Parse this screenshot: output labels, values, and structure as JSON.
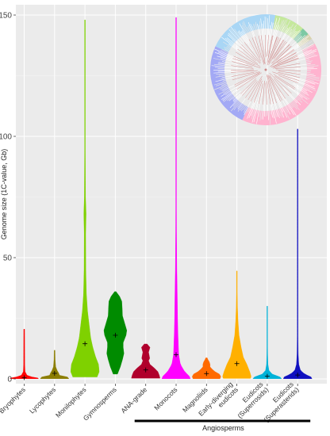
{
  "chart_data": {
    "type": "violin",
    "ylabel": "Genome size (1C-value, Gb)",
    "ylim": [
      0,
      150
    ],
    "yticks": [
      0,
      50,
      100,
      150
    ],
    "grid": true,
    "categories": [
      "Bryophytes",
      "Lycophytes",
      "Monilophytes",
      "Gymnosperms",
      "ANA-grade",
      "Monocots",
      "Magnoliids",
      "Early-diverging eudicots",
      "Eudicots (Superrosids)",
      "Eudicots (Superasterids)"
    ],
    "category_label_lines": [
      [
        "Bryophytes"
      ],
      [
        "Lycophytes"
      ],
      [
        "Monilophytes"
      ],
      [
        "Gymnosperms"
      ],
      [
        "ANA-grade"
      ],
      [
        "Monocots"
      ],
      [
        "Magnoliids"
      ],
      [
        "Early-diverging",
        "eudicots"
      ],
      [
        "Eudicots",
        "(Superrosids)"
      ],
      [
        "Eudicots",
        "(Superasterids)"
      ]
    ],
    "series": [
      {
        "category": "Bryophytes",
        "color": "#ff0000",
        "min": 0.1,
        "max": 20.5,
        "mean": 0.5,
        "profile": [
          [
            0.1,
            1.0
          ],
          [
            0.4,
            0.95
          ],
          [
            0.8,
            0.55
          ],
          [
            1.5,
            0.2
          ],
          [
            3,
            0.06
          ],
          [
            6,
            0.04
          ],
          [
            20.5,
            0.03
          ]
        ]
      },
      {
        "category": "Lycophytes",
        "color": "#8b7d00",
        "min": 0.1,
        "max": 11.8,
        "mean": 2.3,
        "profile": [
          [
            0.1,
            1.0
          ],
          [
            0.8,
            0.9
          ],
          [
            1.5,
            0.35
          ],
          [
            2.5,
            0.28
          ],
          [
            3.5,
            0.18
          ],
          [
            5,
            0.08
          ],
          [
            8,
            0.04
          ],
          [
            11.8,
            0.03
          ]
        ]
      },
      {
        "category": "Monilophytes",
        "color": "#7fd100",
        "min": 0.8,
        "max": 148,
        "mean": 14.5,
        "profile": [
          [
            0.8,
            0.85
          ],
          [
            3,
            1.0
          ],
          [
            6,
            0.95
          ],
          [
            9,
            0.75
          ],
          [
            13,
            0.55
          ],
          [
            17,
            0.4
          ],
          [
            22,
            0.3
          ],
          [
            28,
            0.18
          ],
          [
            35,
            0.1
          ],
          [
            45,
            0.06
          ],
          [
            60,
            0.05
          ],
          [
            68,
            0.08
          ],
          [
            75,
            0.04
          ],
          [
            100,
            0.02
          ],
          [
            148,
            0.01
          ]
        ]
      },
      {
        "category": "Gymnosperms",
        "color": "#008b00",
        "min": 2.0,
        "max": 36,
        "mean": 18,
        "profile": [
          [
            2,
            0.15
          ],
          [
            5,
            0.35
          ],
          [
            8,
            0.5
          ],
          [
            10.5,
            0.6
          ],
          [
            13,
            0.55
          ],
          [
            15,
            0.55
          ],
          [
            18,
            0.75
          ],
          [
            20,
            0.8
          ],
          [
            23,
            0.65
          ],
          [
            26,
            0.5
          ],
          [
            29,
            0.48
          ],
          [
            32,
            0.45
          ],
          [
            34,
            0.3
          ],
          [
            36,
            0.05
          ]
        ]
      },
      {
        "category": "ANA-grade",
        "color": "#b0002c",
        "min": 0.3,
        "max": 14.4,
        "mean": 3.7,
        "profile": [
          [
            0.3,
            1.0
          ],
          [
            1.5,
            0.95
          ],
          [
            3,
            0.85
          ],
          [
            4.5,
            0.6
          ],
          [
            6,
            0.3
          ],
          [
            7.5,
            0.2
          ],
          [
            8.5,
            0.28
          ],
          [
            9.5,
            0.25
          ],
          [
            11,
            0.2
          ],
          [
            13,
            0.3
          ],
          [
            14.4,
            0.1
          ]
        ]
      },
      {
        "category": "Monocots",
        "color": "#ff00ff",
        "min": 0.1,
        "max": 149,
        "mean": 10,
        "profile": [
          [
            0.1,
            1.0
          ],
          [
            1,
            0.95
          ],
          [
            3,
            0.6
          ],
          [
            6,
            0.3
          ],
          [
            10,
            0.18
          ],
          [
            15,
            0.15
          ],
          [
            20,
            0.12
          ],
          [
            26,
            0.1
          ],
          [
            35,
            0.08
          ],
          [
            45,
            0.05
          ],
          [
            60,
            0.03
          ],
          [
            80,
            0.02
          ],
          [
            110,
            0.015
          ],
          [
            149,
            0.01
          ]
        ]
      },
      {
        "category": "Magnoliids",
        "color": "#ff6a00",
        "min": 0.1,
        "max": 8.7,
        "mean": 2.2,
        "profile": [
          [
            0.1,
            0.95
          ],
          [
            1,
            1.0
          ],
          [
            2,
            0.9
          ],
          [
            3,
            0.6
          ],
          [
            4,
            0.4
          ],
          [
            5,
            0.25
          ],
          [
            6,
            0.25
          ],
          [
            7,
            0.2
          ],
          [
            8,
            0.1
          ],
          [
            8.7,
            0.05
          ]
        ]
      },
      {
        "category": "Early-diverging eudicots",
        "color": "#ffb000",
        "min": 0.2,
        "max": 44.5,
        "mean": 6.3,
        "profile": [
          [
            0.2,
            0.95
          ],
          [
            1,
            1.0
          ],
          [
            3,
            0.9
          ],
          [
            6,
            0.7
          ],
          [
            9,
            0.45
          ],
          [
            13,
            0.3
          ],
          [
            18,
            0.15
          ],
          [
            24,
            0.08
          ],
          [
            30,
            0.04
          ],
          [
            38,
            0.02
          ],
          [
            44.5,
            0.01
          ]
        ]
      },
      {
        "category": "Eudicots (Superrosids)",
        "color": "#00b2d8",
        "min": 0.1,
        "max": 30,
        "mean": 1.1,
        "profile": [
          [
            0.1,
            1.0
          ],
          [
            0.8,
            0.9
          ],
          [
            2,
            0.35
          ],
          [
            3.5,
            0.12
          ],
          [
            6,
            0.05
          ],
          [
            10,
            0.03
          ],
          [
            20,
            0.015
          ],
          [
            30,
            0.01
          ]
        ]
      },
      {
        "category": "Eudicots (Superasterids)",
        "color": "#1010c0",
        "min": 0.1,
        "max": 103,
        "mean": 1.6,
        "profile": [
          [
            0.1,
            1.0
          ],
          [
            0.8,
            0.95
          ],
          [
            2,
            0.5
          ],
          [
            3.5,
            0.2
          ],
          [
            6,
            0.08
          ],
          [
            10,
            0.04
          ],
          [
            20,
            0.02
          ],
          [
            50,
            0.01
          ],
          [
            103,
            0.008
          ]
        ]
      }
    ],
    "bracket": {
      "label": "Angiosperms",
      "from": "ANA-grade",
      "to": "Eudicots (Superasterids)"
    },
    "inset": {
      "type": "circular-phylogeny",
      "wedges": [
        {
          "color": "#ffb3cf",
          "from": 355,
          "to": 475
        },
        {
          "color": "#a3a9f5",
          "from": 475,
          "to": 565
        },
        {
          "color": "#a9d6f5",
          "from": 565,
          "to": 662
        },
        {
          "color": "#ffd9b3",
          "from": 662,
          "to": 676
        },
        {
          "color": "#ffd36b",
          "from": 676,
          "to": 686
        },
        {
          "color": "#f7f0a0",
          "from": 686,
          "to": 694
        },
        {
          "color": "#f2b8b8",
          "from": 694,
          "to": 704
        },
        {
          "color": "#c5e89c",
          "from": 280,
          "to": 312
        },
        {
          "color": "#7cc9a4",
          "from": 312,
          "to": 320
        },
        {
          "color": "#d6d2b0",
          "from": 320,
          "to": 326
        },
        {
          "color": "#d9d9d9",
          "from": 326,
          "to": 332
        },
        {
          "color": "#ffb3cf",
          "from": 332,
          "to": 355
        }
      ]
    }
  }
}
